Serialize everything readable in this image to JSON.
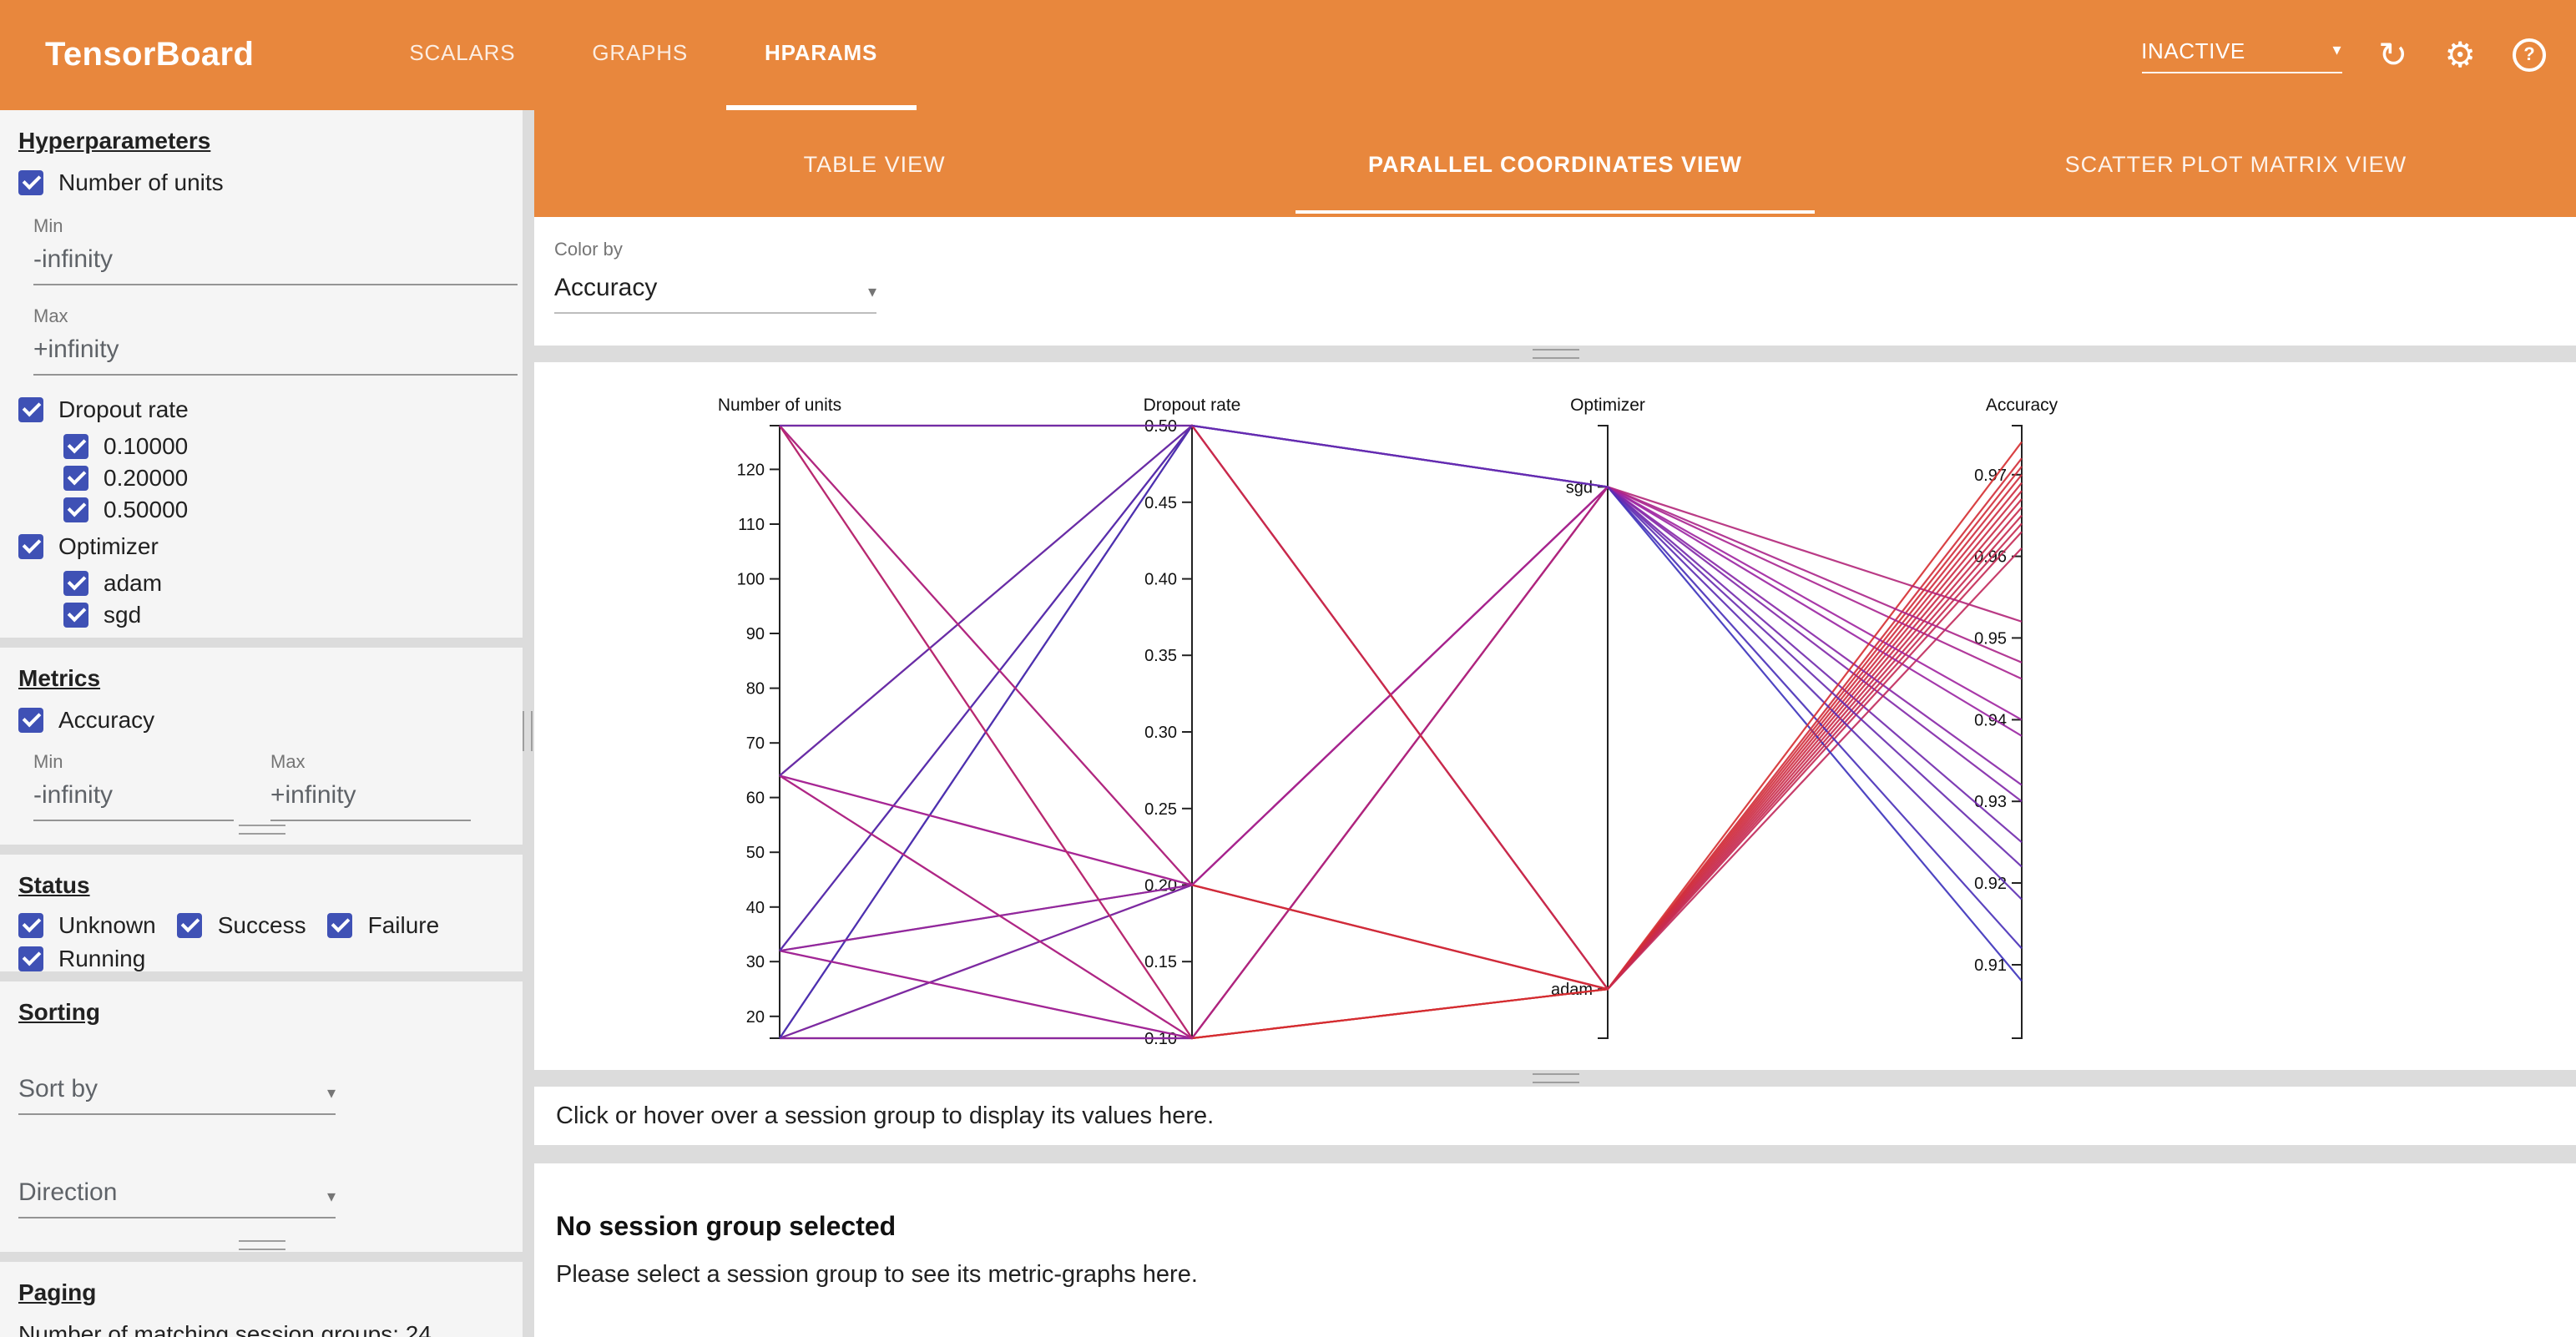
{
  "header": {
    "title": "TensorBoard",
    "tabs": [
      {
        "label": "SCALARS"
      },
      {
        "label": "GRAPHS"
      },
      {
        "label": "HPARAMS"
      }
    ],
    "status_dropdown": "INACTIVE",
    "icons": {
      "refresh": "refresh-icon",
      "settings": "gear-icon",
      "help": "help-icon"
    }
  },
  "sidebar": {
    "hyperparameters": {
      "heading": "Hyperparameters",
      "number_of_units": {
        "label": "Number of units",
        "min_label": "Min",
        "min_value": "-infinity",
        "max_label": "Max",
        "max_value": "+infinity"
      },
      "dropout_rate": {
        "label": "Dropout rate",
        "options": [
          {
            "label": "0.10000"
          },
          {
            "label": "0.20000"
          },
          {
            "label": "0.50000"
          }
        ]
      },
      "optimizer": {
        "label": "Optimizer",
        "options": [
          {
            "label": "adam"
          },
          {
            "label": "sgd"
          }
        ]
      }
    },
    "metrics": {
      "heading": "Metrics",
      "accuracy_label": "Accuracy",
      "min_label": "Min",
      "min_value": "-infinity",
      "max_label": "Max",
      "max_value": "+infinity"
    },
    "status": {
      "heading": "Status",
      "options": [
        {
          "label": "Unknown"
        },
        {
          "label": "Success"
        },
        {
          "label": "Failure"
        },
        {
          "label": "Running"
        }
      ]
    },
    "sorting": {
      "heading": "Sorting",
      "sort_by_placeholder": "Sort by",
      "direction_placeholder": "Direction"
    },
    "paging": {
      "heading": "Paging",
      "summary": "Number of matching session groups: 24"
    }
  },
  "main": {
    "view_tabs": [
      {
        "label": "TABLE VIEW"
      },
      {
        "label": "PARALLEL COORDINATES VIEW"
      },
      {
        "label": "SCATTER PLOT MATRIX VIEW"
      }
    ],
    "color_by": {
      "label": "Color by",
      "value": "Accuracy"
    },
    "hover_message": "Click or hover over a session group to display its values here.",
    "empty_state": {
      "title": "No session group selected",
      "subtitle": "Please select a session group to see its metric-graphs here."
    }
  },
  "chart_data": {
    "type": "parallel-coordinates",
    "color_by": "Accuracy",
    "axes": [
      {
        "name": "Number of units",
        "type": "linear",
        "domain": [
          16,
          128
        ],
        "ticks": [
          120,
          110,
          100,
          90,
          80,
          70,
          60,
          50,
          40,
          30,
          20
        ]
      },
      {
        "name": "Dropout rate",
        "type": "linear",
        "domain": [
          0.1,
          0.5
        ],
        "ticks": [
          "0.50",
          "0.45",
          "0.40",
          "0.35",
          "0.30",
          "0.25",
          "0.20",
          "0.15",
          "0.10"
        ]
      },
      {
        "name": "Optimizer",
        "type": "categorical",
        "categories": [
          "sgd",
          "adam"
        ],
        "positions": [
          0.1,
          0.92
        ]
      },
      {
        "name": "Accuracy",
        "type": "linear",
        "domain": [
          0.901,
          0.976
        ],
        "ticks": [
          "0.97",
          "0.96",
          "0.95",
          "0.94",
          "0.93",
          "0.92",
          "0.91"
        ]
      }
    ],
    "color_scale": {
      "low": "#3232be",
      "mid": "#a023a0",
      "high": "#d72d2d",
      "domain": [
        0.905,
        0.975
      ]
    },
    "sessions": [
      {
        "units": 16,
        "dropout": 0.1,
        "optimizer": "adam",
        "accuracy": 0.968
      },
      {
        "units": 16,
        "dropout": 0.1,
        "optimizer": "sgd",
        "accuracy": 0.93
      },
      {
        "units": 16,
        "dropout": 0.2,
        "optimizer": "adam",
        "accuracy": 0.965
      },
      {
        "units": 16,
        "dropout": 0.2,
        "optimizer": "sgd",
        "accuracy": 0.925
      },
      {
        "units": 16,
        "dropout": 0.5,
        "optimizer": "adam",
        "accuracy": 0.961
      },
      {
        "units": 16,
        "dropout": 0.5,
        "optimizer": "sgd",
        "accuracy": 0.908
      },
      {
        "units": 32,
        "dropout": 0.1,
        "optimizer": "adam",
        "accuracy": 0.97
      },
      {
        "units": 32,
        "dropout": 0.1,
        "optimizer": "sgd",
        "accuracy": 0.938
      },
      {
        "units": 32,
        "dropout": 0.2,
        "optimizer": "adam",
        "accuracy": 0.967
      },
      {
        "units": 32,
        "dropout": 0.2,
        "optimizer": "sgd",
        "accuracy": 0.932
      },
      {
        "units": 32,
        "dropout": 0.5,
        "optimizer": "adam",
        "accuracy": 0.963
      },
      {
        "units": 32,
        "dropout": 0.5,
        "optimizer": "sgd",
        "accuracy": 0.912
      },
      {
        "units": 64,
        "dropout": 0.1,
        "optimizer": "adam",
        "accuracy": 0.972
      },
      {
        "units": 64,
        "dropout": 0.1,
        "optimizer": "sgd",
        "accuracy": 0.945
      },
      {
        "units": 64,
        "dropout": 0.2,
        "optimizer": "adam",
        "accuracy": 0.969
      },
      {
        "units": 64,
        "dropout": 0.2,
        "optimizer": "sgd",
        "accuracy": 0.94
      },
      {
        "units": 64,
        "dropout": 0.5,
        "optimizer": "adam",
        "accuracy": 0.964
      },
      {
        "units": 64,
        "dropout": 0.5,
        "optimizer": "sgd",
        "accuracy": 0.918
      },
      {
        "units": 128,
        "dropout": 0.1,
        "optimizer": "adam",
        "accuracy": 0.974
      },
      {
        "units": 128,
        "dropout": 0.1,
        "optimizer": "sgd",
        "accuracy": 0.952
      },
      {
        "units": 128,
        "dropout": 0.2,
        "optimizer": "adam",
        "accuracy": 0.971
      },
      {
        "units": 128,
        "dropout": 0.2,
        "optimizer": "sgd",
        "accuracy": 0.947
      },
      {
        "units": 128,
        "dropout": 0.5,
        "optimizer": "adam",
        "accuracy": 0.966
      },
      {
        "units": 128,
        "dropout": 0.5,
        "optimizer": "sgd",
        "accuracy": 0.922
      }
    ]
  }
}
